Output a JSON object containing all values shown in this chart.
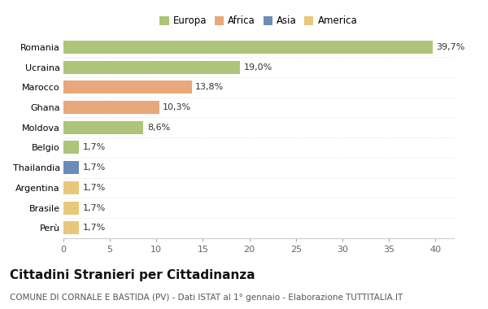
{
  "categories": [
    "Romania",
    "Ucraina",
    "Marocco",
    "Ghana",
    "Moldova",
    "Belgio",
    "Thailandia",
    "Argentina",
    "Brasile",
    "Perù"
  ],
  "values": [
    39.7,
    19.0,
    13.8,
    10.3,
    8.6,
    1.7,
    1.7,
    1.7,
    1.7,
    1.7
  ],
  "labels": [
    "39,7%",
    "19,0%",
    "13,8%",
    "10,3%",
    "8,6%",
    "1,7%",
    "1,7%",
    "1,7%",
    "1,7%",
    "1,7%"
  ],
  "colors": [
    "#adc47a",
    "#adc47a",
    "#e8a87c",
    "#e8a87c",
    "#adc47a",
    "#adc47a",
    "#6b8cba",
    "#e8c87a",
    "#e8c87a",
    "#e8c87a"
  ],
  "legend_labels": [
    "Europa",
    "Africa",
    "Asia",
    "America"
  ],
  "legend_colors": [
    "#adc47a",
    "#e8a87c",
    "#6b8cba",
    "#e8c87a"
  ],
  "xlim": [
    0,
    42
  ],
  "xticks": [
    0,
    5,
    10,
    15,
    20,
    25,
    30,
    35,
    40
  ],
  "title": "Cittadini Stranieri per Cittadinanza",
  "subtitle": "COMUNE DI CORNALE E BASTIDA (PV) - Dati ISTAT al 1° gennaio - Elaborazione TUTTITALIA.IT",
  "background_color": "#ffffff",
  "bar_height": 0.65,
  "grid_color": "#e0e0e0",
  "title_fontsize": 11,
  "subtitle_fontsize": 7.5,
  "label_fontsize": 8,
  "tick_fontsize": 8,
  "legend_fontsize": 8.5
}
